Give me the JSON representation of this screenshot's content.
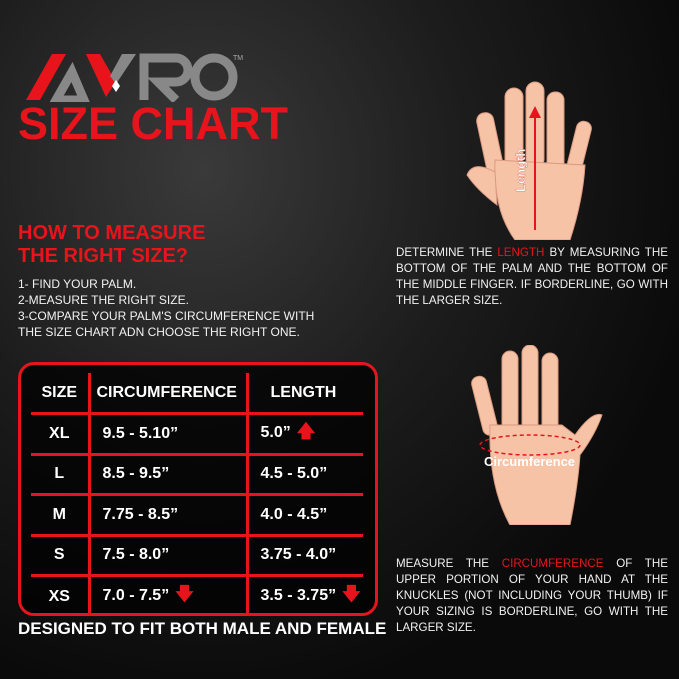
{
  "brand": {
    "logo_text": "AYRO",
    "tm": "TM"
  },
  "title": "SIZE CHART",
  "how_to": {
    "heading_line1": "HOW TO MEASURE",
    "heading_line2": "THE RIGHT SIZE?",
    "steps": [
      "1- FIND YOUR PALM.",
      "2-MEASURE THE RIGHT SIZE.",
      "3-COMPARE YOUR PALM'S CIRCUMFERENCE WITH",
      "THE SIZE CHART ADN CHOOSE THE RIGHT ONE."
    ]
  },
  "table": {
    "headers": [
      "SIZE",
      "CIRCUMFERENCE",
      "LENGTH"
    ],
    "rows": [
      {
        "size": "XL",
        "circumference": "9.5 - 5.10”",
        "length": "5.0”"
      },
      {
        "size": "L",
        "circumference": "8.5 - 9.5”",
        "length": "4.5 - 5.0”"
      },
      {
        "size": "M",
        "circumference": "7.75 - 8.5”",
        "length": "4.0 - 4.5”"
      },
      {
        "size": "S",
        "circumference": "7.5 - 8.0”",
        "length": "3.75 - 4.0”"
      },
      {
        "size": "XS",
        "circumference": "7.0 - 7.5”",
        "length": "3.5 - 3.75”"
      }
    ]
  },
  "footer": "DESIGNED TO FIT BOTH MALE AND FEMALE",
  "length_diagram": {
    "label": "Length",
    "desc_pre": "DETERMINE THE ",
    "desc_highlight": "LENGTH",
    "desc_post": " BY MEASURING THE BOTTOM OF THE PALM AND THE BOTTOM OF THE MIDDLE FINGER. IF BORDERLINE, GO WITH THE LARGER SIZE."
  },
  "circ_diagram": {
    "label": "Circumference",
    "desc_pre": "MEASURE THE ",
    "desc_highlight": "CIRCUMFERENCE",
    "desc_post": " OF THE UPPER PORTION OF YOUR HAND AT THE KNUCKLES (NOT INCLUDING YOUR THUMB) IF YOUR SIZING IS BORDERLINE, GO WITH THE LARGER SIZE."
  },
  "colors": {
    "accent": "#e8141c",
    "skin": "#f7c3a6",
    "background": "#111111"
  }
}
